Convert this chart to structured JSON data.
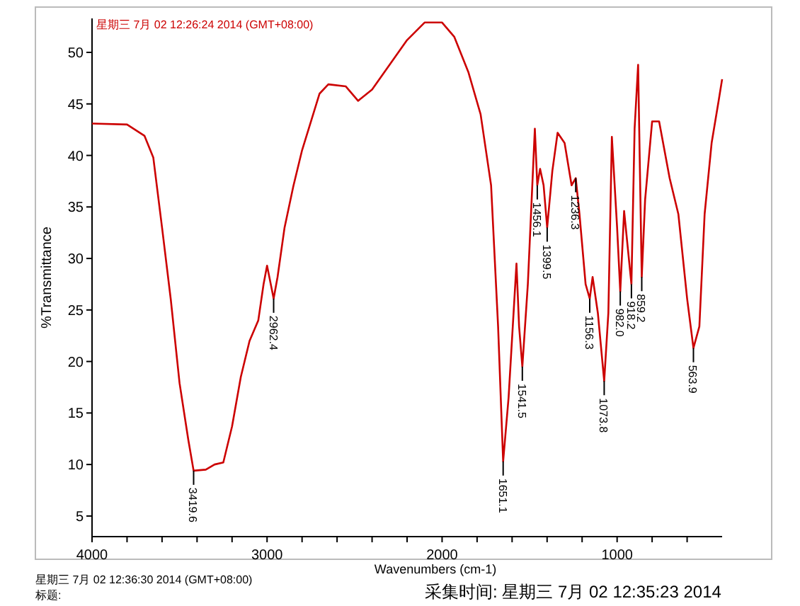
{
  "chart_data": {
    "type": "line",
    "xlabel": "Wavenumbers (cm-1)",
    "ylabel": "%Transmittance",
    "xlim": [
      4000,
      400
    ],
    "ylim": [
      3,
      53.3
    ],
    "xticks": [
      4000,
      {
        "value": 3800,
        "label": null
      },
      {
        "value": 3600,
        "label": null
      },
      {
        "value": 3400,
        "label": null
      },
      {
        "value": 3200,
        "label": null
      },
      3000,
      {
        "value": 2800,
        "label": null
      },
      {
        "value": 2600,
        "label": null
      },
      {
        "value": 2400,
        "label": null
      },
      {
        "value": 2200,
        "label": null
      },
      2000,
      {
        "value": 1800,
        "label": null
      },
      {
        "value": 1600,
        "label": null
      },
      {
        "value": 1400,
        "label": null
      },
      {
        "value": 1200,
        "label": null
      },
      1000,
      {
        "value": 800,
        "label": null
      },
      {
        "value": 600,
        "label": null
      }
    ],
    "yticks": [
      5,
      10,
      15,
      20,
      25,
      30,
      35,
      40,
      45,
      50
    ],
    "grid": false,
    "series": [
      {
        "color": "#cc0000",
        "x": [
          4000,
          3800,
          3700,
          3650,
          3600,
          3550,
          3500,
          3450,
          3419.6,
          3350,
          3300,
          3250,
          3200,
          3150,
          3100,
          3050,
          3020,
          3000,
          2962.4,
          2940,
          2900,
          2850,
          2800,
          2700,
          2650,
          2550,
          2480,
          2400,
          2300,
          2200,
          2100,
          2000,
          1930,
          1850,
          1780,
          1720,
          1680,
          1651.1,
          1620,
          1575,
          1560,
          1541.5,
          1510,
          1470,
          1456.1,
          1440,
          1420,
          1399.5,
          1370,
          1340,
          1300,
          1260,
          1236.3,
          1215,
          1180,
          1156.3,
          1140,
          1110,
          1073.8,
          1050,
          1030,
          1000,
          982.0,
          960,
          918.2,
          900,
          880,
          859.2,
          840,
          800,
          760,
          700,
          650,
          600,
          563.9,
          530,
          500,
          460,
          420,
          400
        ],
        "values": [
          43.1,
          43.0,
          41.9,
          39.8,
          33,
          26,
          17.9,
          12.4,
          9.4,
          9.5,
          10.0,
          10.2,
          13.7,
          18.5,
          22,
          24,
          27.5,
          29.3,
          26.1,
          28.2,
          33,
          37,
          40.5,
          46,
          46.9,
          46.7,
          45.3,
          46.4,
          48.8,
          51.2,
          52.9,
          52.9,
          51.5,
          48.1,
          44,
          37.1,
          23.4,
          10.3,
          16.5,
          29.5,
          23.4,
          19.5,
          27.5,
          42.6,
          37.1,
          38.7,
          37.1,
          33,
          38.5,
          42.2,
          41.2,
          37.1,
          37.8,
          34.3,
          27.5,
          26.1,
          28.2,
          24.7,
          18.1,
          24.7,
          41.8,
          33,
          26.8,
          34.6,
          27.5,
          42.6,
          48.8,
          28.2,
          35.7,
          43.3,
          43.3,
          37.8,
          34.3,
          26.1,
          21.3,
          23.4,
          34.3,
          41.2,
          45.3,
          47.4
        ]
      }
    ],
    "annotations": [
      {
        "text": "3419.6",
        "x": 3419.6,
        "y": 9.4
      },
      {
        "text": "2962.4",
        "x": 2962.4,
        "y": 26.1
      },
      {
        "text": "1651.1",
        "x": 1651.1,
        "y": 10.3
      },
      {
        "text": "1541.5",
        "x": 1541.5,
        "y": 19.5
      },
      {
        "text": "1456.1",
        "x": 1456.1,
        "y": 37.1
      },
      {
        "text": "1399.5",
        "x": 1399.5,
        "y": 33
      },
      {
        "text": "1236.3",
        "x": 1236.3,
        "y": 37.8
      },
      {
        "text": "1156.3",
        "x": 1156.3,
        "y": 26.1
      },
      {
        "text": "1073.8",
        "x": 1073.8,
        "y": 18.1
      },
      {
        "text": "982.0",
        "x": 982.0,
        "y": 26.8
      },
      {
        "text": "918.2",
        "x": 918.2,
        "y": 27.5
      },
      {
        "text": "859.2",
        "x": 859.2,
        "y": 28.2
      },
      {
        "text": "563.9",
        "x": 563.9,
        "y": 21.3
      },
      "星期三 7月 02 12:26:24 2014 (GMT+08:00)",
      "星期三 7月 02 12:36:30 2014 (GMT+08:00)",
      "标题:",
      "采集时间: 星期三 7月 02 12:35:23 2014"
    ]
  }
}
